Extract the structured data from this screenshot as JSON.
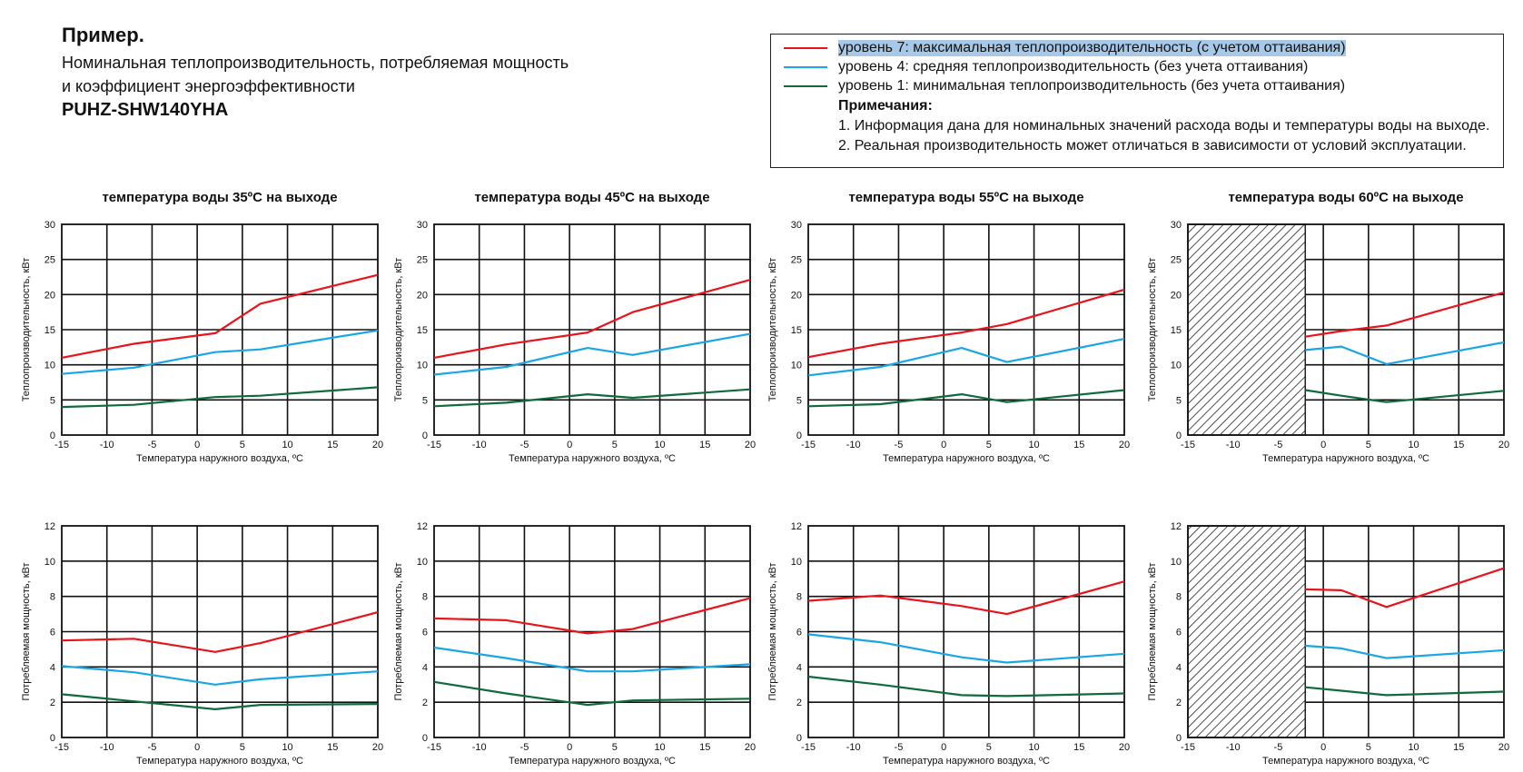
{
  "header": {
    "title": "Пример.",
    "subtitle_line1": "Номинальная теплопроизводительность, потребляемая мощность",
    "subtitle_line2": "и коэффициент энергоэффективности",
    "model": "PUHZ-SHW140YHA"
  },
  "legend": {
    "items": [
      {
        "label": "уровень 7: максимальная теплопроизводительность (с учетом оттаивания)",
        "color": "#e8141c",
        "highlighted": true
      },
      {
        "label": "уровень 4: средняя теплопроизводительность (без учета оттаивания)",
        "color": "#1aa6e6",
        "highlighted": false
      },
      {
        "label": "уровень 1: минимальная теплопроизводительность (без учета оттаивания)",
        "color": "#0f6b3a",
        "highlighted": false
      }
    ],
    "notes_title": "Примечания:",
    "notes": [
      "1. Информация дана для номинальных значений расхода воды и температуры воды на выходе.",
      "2. Реальная производительность может отличаться в зависимости от условий эксплуатации."
    ]
  },
  "chart_data": [
    {
      "type": "line",
      "title": "температура воды 35ºС на выходе",
      "xlabel": "Температура наружного воздуха, ºС",
      "ylabel": "Теплопроизводительность, кВт",
      "xlim": [
        -15,
        20
      ],
      "ylim": [
        0,
        30
      ],
      "xticks": [
        -15,
        -10,
        -5,
        0,
        5,
        10,
        15,
        20
      ],
      "yticks": [
        0,
        5,
        10,
        15,
        20,
        25,
        30
      ],
      "grid": true,
      "hatched_range": null,
      "series": [
        {
          "color": "#e8141c",
          "x": [
            -15,
            -7,
            2,
            7,
            20
          ],
          "y": [
            11,
            13,
            14.5,
            18.7,
            22.8
          ]
        },
        {
          "color": "#1aa6e6",
          "x": [
            -15,
            -7,
            2,
            7,
            20
          ],
          "y": [
            8.7,
            9.6,
            11.8,
            12.2,
            14.9
          ]
        },
        {
          "color": "#0f6b3a",
          "x": [
            -15,
            -7,
            2,
            7,
            20
          ],
          "y": [
            4,
            4.3,
            5.4,
            5.6,
            6.8
          ]
        }
      ]
    },
    {
      "type": "line",
      "title": "температура воды 45ºС на выходе",
      "xlabel": "Температура наружного воздуха, ºС",
      "ylabel": "Теплопроизводительность, кВт",
      "xlim": [
        -15,
        20
      ],
      "ylim": [
        0,
        30
      ],
      "xticks": [
        -15,
        -10,
        -5,
        0,
        5,
        10,
        15,
        20
      ],
      "yticks": [
        0,
        5,
        10,
        15,
        20,
        25,
        30
      ],
      "grid": true,
      "hatched_range": null,
      "series": [
        {
          "color": "#e8141c",
          "x": [
            -15,
            -7,
            2,
            7,
            20
          ],
          "y": [
            11,
            12.9,
            14.6,
            17.5,
            22.1
          ]
        },
        {
          "color": "#1aa6e6",
          "x": [
            -15,
            -7,
            2,
            7,
            20
          ],
          "y": [
            8.6,
            9.7,
            12.4,
            11.4,
            14.4
          ]
        },
        {
          "color": "#0f6b3a",
          "x": [
            -15,
            -7,
            2,
            7,
            20
          ],
          "y": [
            4.1,
            4.6,
            5.8,
            5.3,
            6.5
          ]
        }
      ]
    },
    {
      "type": "line",
      "title": "температура воды 55ºС на выходе",
      "xlabel": "Температура наружного воздуха, ºС",
      "ylabel": "Теплопроизводительность, кВт",
      "xlim": [
        -15,
        20
      ],
      "ylim": [
        0,
        30
      ],
      "xticks": [
        -15,
        -10,
        -5,
        0,
        5,
        10,
        15,
        20
      ],
      "yticks": [
        0,
        5,
        10,
        15,
        20,
        25,
        30
      ],
      "grid": true,
      "hatched_range": null,
      "series": [
        {
          "color": "#e8141c",
          "x": [
            -15,
            -7,
            2,
            7,
            20
          ],
          "y": [
            11.1,
            13,
            14.6,
            15.8,
            20.7
          ]
        },
        {
          "color": "#1aa6e6",
          "x": [
            -15,
            -7,
            2,
            7,
            20
          ],
          "y": [
            8.5,
            9.7,
            12.4,
            10.4,
            13.7
          ]
        },
        {
          "color": "#0f6b3a",
          "x": [
            -15,
            -7,
            2,
            7,
            20
          ],
          "y": [
            4.1,
            4.4,
            5.8,
            4.7,
            6.4
          ]
        }
      ]
    },
    {
      "type": "line",
      "title": "температура воды 60ºС на выходе",
      "xlabel": "Температура наружного воздуха, ºС",
      "ylabel": "Теплопроизводительность, кВт",
      "xlim": [
        -15,
        20
      ],
      "ylim": [
        0,
        30
      ],
      "xticks": [
        -15,
        -10,
        -5,
        0,
        5,
        10,
        15,
        20
      ],
      "yticks": [
        0,
        5,
        10,
        15,
        20,
        25,
        30
      ],
      "grid": true,
      "hatched_range": [
        -15,
        -2
      ],
      "series": [
        {
          "color": "#e8141c",
          "x": [
            -2,
            2,
            7,
            20
          ],
          "y": [
            14,
            14.8,
            15.6,
            20.3
          ]
        },
        {
          "color": "#1aa6e6",
          "x": [
            -2,
            2,
            7,
            20
          ],
          "y": [
            12.1,
            12.6,
            10.1,
            13.2
          ]
        },
        {
          "color": "#0f6b3a",
          "x": [
            -2,
            2,
            7,
            20
          ],
          "y": [
            6.4,
            5.6,
            4.7,
            6.3
          ]
        }
      ]
    },
    {
      "type": "line",
      "title": "",
      "xlabel": "Температура наружного воздуха, ºС",
      "ylabel": "Потребляемая мощность, кВт",
      "xlim": [
        -15,
        20
      ],
      "ylim": [
        0,
        12
      ],
      "xticks": [
        -15,
        -10,
        -5,
        0,
        5,
        10,
        15,
        20
      ],
      "yticks": [
        0,
        2,
        4,
        6,
        8,
        10,
        12
      ],
      "grid": true,
      "hatched_range": null,
      "series": [
        {
          "color": "#e8141c",
          "x": [
            -15,
            -7,
            2,
            7,
            20
          ],
          "y": [
            5.5,
            5.6,
            4.85,
            5.35,
            7.1
          ]
        },
        {
          "color": "#1aa6e6",
          "x": [
            -15,
            -7,
            2,
            7,
            20
          ],
          "y": [
            4.05,
            3.7,
            3,
            3.3,
            3.75
          ]
        },
        {
          "color": "#0f6b3a",
          "x": [
            -15,
            -7,
            2,
            7,
            20
          ],
          "y": [
            2.45,
            2.05,
            1.6,
            1.85,
            1.9
          ]
        }
      ]
    },
    {
      "type": "line",
      "title": "",
      "xlabel": "Температура наружного воздуха, ºС",
      "ylabel": "Потребляемая мощность, кВт",
      "xlim": [
        -15,
        20
      ],
      "ylim": [
        0,
        12
      ],
      "xticks": [
        -15,
        -10,
        -5,
        0,
        5,
        10,
        15,
        20
      ],
      "yticks": [
        0,
        2,
        4,
        6,
        8,
        10,
        12
      ],
      "grid": true,
      "hatched_range": null,
      "series": [
        {
          "color": "#e8141c",
          "x": [
            -15,
            -7,
            2,
            7,
            20
          ],
          "y": [
            6.75,
            6.65,
            5.9,
            6.15,
            7.9
          ]
        },
        {
          "color": "#1aa6e6",
          "x": [
            -15,
            -7,
            2,
            7,
            20
          ],
          "y": [
            5.1,
            4.5,
            3.75,
            3.75,
            4.15
          ]
        },
        {
          "color": "#0f6b3a",
          "x": [
            -15,
            -7,
            2,
            7,
            20
          ],
          "y": [
            3.15,
            2.5,
            1.85,
            2.1,
            2.2
          ]
        }
      ]
    },
    {
      "type": "line",
      "title": "",
      "xlabel": "Температура наружного воздуха, ºС",
      "ylabel": "Потребляемая мощность, кВт",
      "xlim": [
        -15,
        20
      ],
      "ylim": [
        0,
        12
      ],
      "xticks": [
        -15,
        -10,
        -5,
        0,
        5,
        10,
        15,
        20
      ],
      "yticks": [
        0,
        2,
        4,
        6,
        8,
        10,
        12
      ],
      "grid": true,
      "hatched_range": null,
      "series": [
        {
          "color": "#e8141c",
          "x": [
            -15,
            -7,
            2,
            7,
            20
          ],
          "y": [
            7.75,
            8.05,
            7.45,
            7,
            8.85
          ]
        },
        {
          "color": "#1aa6e6",
          "x": [
            -15,
            -7,
            2,
            7,
            20
          ],
          "y": [
            5.85,
            5.4,
            4.55,
            4.25,
            4.75
          ]
        },
        {
          "color": "#0f6b3a",
          "x": [
            -15,
            -7,
            2,
            7,
            20
          ],
          "y": [
            3.45,
            3,
            2.4,
            2.35,
            2.5
          ]
        }
      ]
    },
    {
      "type": "line",
      "title": "",
      "xlabel": "Температура наружного воздуха, ºС",
      "ylabel": "Потребляемая мощность, кВт",
      "xlim": [
        -15,
        20
      ],
      "ylim": [
        0,
        12
      ],
      "xticks": [
        -15,
        -10,
        -5,
        0,
        5,
        10,
        15,
        20
      ],
      "yticks": [
        0,
        2,
        4,
        6,
        8,
        10,
        12
      ],
      "grid": true,
      "hatched_range": [
        -15,
        -2
      ],
      "series": [
        {
          "color": "#e8141c",
          "x": [
            -2,
            2,
            7,
            20
          ],
          "y": [
            8.4,
            8.35,
            7.4,
            9.6
          ]
        },
        {
          "color": "#1aa6e6",
          "x": [
            -2,
            2,
            7,
            20
          ],
          "y": [
            5.2,
            5.05,
            4.5,
            4.95
          ]
        },
        {
          "color": "#0f6b3a",
          "x": [
            -2,
            2,
            7,
            20
          ],
          "y": [
            2.85,
            2.65,
            2.4,
            2.6
          ]
        }
      ]
    }
  ]
}
